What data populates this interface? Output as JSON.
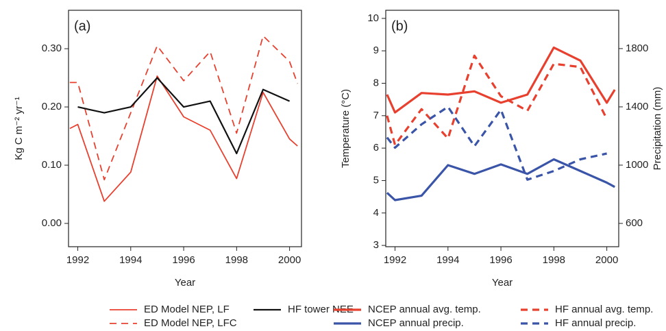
{
  "chart_data": [
    {
      "type": "line",
      "panel_label": "(a)",
      "x_label": "Year",
      "y_label": "Kg C m⁻² yr⁻¹",
      "x": [
        1991.7,
        1992,
        1993,
        1994,
        1995,
        1996,
        1997,
        1998,
        1999,
        2000,
        2000.3
      ],
      "xlim": [
        1991.65,
        2000.45
      ],
      "xticks": [
        1992,
        1994,
        1996,
        1998,
        2000
      ],
      "ylim": [
        -0.04,
        0.366
      ],
      "yticks": [
        {
          "value": 0,
          "label": "0.00"
        },
        {
          "value": 0.1,
          "label": "0.10"
        },
        {
          "value": 0.2,
          "label": "0.20"
        },
        {
          "value": 0.3,
          "label": "0.30"
        }
      ],
      "series": [
        {
          "name": "ED Model NEP, LF",
          "color": "#e8402f",
          "style": "solid",
          "width": 1.8,
          "values": [
            0.163,
            0.17,
            0.038,
            0.088,
            0.253,
            0.183,
            0.16,
            0.077,
            0.225,
            0.145,
            0.133
          ]
        },
        {
          "name": "ED Model NEP, LFC",
          "color": "#e8402f",
          "style": "dashed",
          "width": 1.8,
          "values": [
            0.242,
            0.242,
            0.075,
            0.19,
            0.305,
            0.245,
            0.295,
            0.155,
            0.322,
            0.278,
            0.24
          ]
        },
        {
          "name": "HF tower NEE",
          "color": "#111111",
          "style": "solid",
          "width": 2.2,
          "values": [
            null,
            0.2,
            0.19,
            0.2,
            0.25,
            0.2,
            0.21,
            0.12,
            0.23,
            0.21,
            null
          ]
        }
      ]
    },
    {
      "type": "line",
      "panel_label": "(b)",
      "x_label": "Year",
      "y_label": "Temperature (°C)",
      "y2_label": "Precipitation (mm)",
      "x": [
        1991.7,
        1992,
        1993,
        1994,
        1995,
        1996,
        1997,
        1998,
        1999,
        2000,
        2000.3
      ],
      "xlim": [
        1991.65,
        2000.45
      ],
      "xticks": [
        1992,
        1994,
        1996,
        1998,
        2000
      ],
      "ylim": [
        2.96,
        10.25
      ],
      "yticks": [
        3,
        4,
        5,
        6,
        7,
        8,
        9,
        10
      ],
      "y2lim": [
        440,
        2063
      ],
      "y2ticks": [
        600,
        1000,
        1400,
        1800
      ],
      "series": [
        {
          "name": "NCEP annual avg. temp.",
          "color": "#e8402f",
          "style": "solid",
          "width": 3.2,
          "values": [
            7.65,
            7.1,
            7.7,
            7.65,
            7.75,
            7.4,
            7.65,
            9.1,
            8.7,
            7.4,
            7.8
          ]
        },
        {
          "name": "NCEP annual precip.",
          "color": "#3a55a8",
          "style": "solid",
          "width": 3.2,
          "axis": "y2",
          "values": [
            810,
            760,
            790,
            1000,
            940,
            1005,
            940,
            1040,
            960,
            880,
            850
          ]
        },
        {
          "name": "HF annual avg. temp.",
          "color": "#e8402f",
          "style": "dashed",
          "width": 3.2,
          "values": [
            7.0,
            6.1,
            7.2,
            6.3,
            8.85,
            7.6,
            7.15,
            8.6,
            8.5,
            6.9,
            null
          ]
        },
        {
          "name": "HF annual precip.",
          "color": "#3a55a8",
          "style": "dashed",
          "width": 3.2,
          "axis": "y2",
          "values": [
            1190,
            1120,
            1280,
            1400,
            1130,
            1380,
            900,
            960,
            1040,
            1080,
            null
          ]
        }
      ]
    }
  ]
}
